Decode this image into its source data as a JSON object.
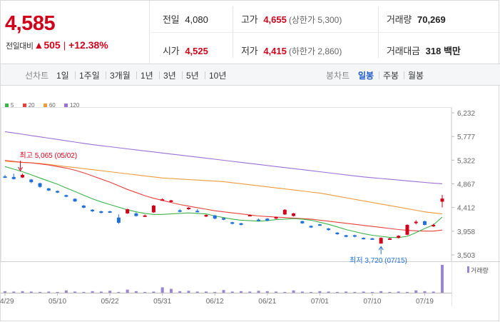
{
  "header": {
    "current_price": "4,585",
    "change_label": "전일대비",
    "change_value": "▲505",
    "change_rate": "+12.38%"
  },
  "stats": {
    "prev_close": {
      "label": "전일",
      "value": "4,080"
    },
    "high": {
      "label": "고가",
      "value": "4,655",
      "sub": "(상한가 5,300)"
    },
    "volume": {
      "label": "거래량",
      "value": "70,269"
    },
    "open": {
      "label": "시가",
      "value": "4,525"
    },
    "low": {
      "label": "저가",
      "value": "4,415",
      "sub": "(하한가 2,860)"
    },
    "amount": {
      "label": "거래대금",
      "value": "318 백만"
    }
  },
  "period_bar": {
    "line_label": "선차트",
    "line_options": [
      "1일",
      "1주일",
      "3개월",
      "1년",
      "3년",
      "5년",
      "10년"
    ],
    "candle_label": "봉차트",
    "candle_options": [
      "일봉",
      "주봉",
      "월봉"
    ],
    "candle_active": "일봉"
  },
  "colors": {
    "up": "#d0021b",
    "down": "#1f6fd6",
    "ma5": "#3cb44b",
    "ma20": "#e8413c",
    "ma60": "#f09a3e",
    "ma120": "#9b6fd3",
    "volume": "#9b86d3"
  },
  "chart_data": {
    "type": "candlestick",
    "title": "",
    "legend": [
      "5",
      "20",
      "60",
      "120"
    ],
    "y_ticks": [
      "6,232",
      "5,777",
      "5,322",
      "4,867",
      "4,412",
      "3,958",
      "3,503"
    ],
    "ylim": [
      3503,
      6232
    ],
    "x_labels": [
      "04/29",
      "05/10",
      "05/22",
      "05/31",
      "06/12",
      "06/21",
      "07/01",
      "07/10",
      "07/19"
    ],
    "x_label_index": [
      0,
      6,
      12,
      18,
      24,
      30,
      36,
      42,
      48
    ],
    "volume_label": "거래량",
    "annotations": {
      "high": {
        "text": "최고 5,065 (05/02)",
        "index": 2,
        "value": 5065
      },
      "low": {
        "text": "최저 3,720 (07/15)",
        "index": 43,
        "value": 3720
      }
    },
    "ohlc": [
      [
        5010,
        5040,
        4990,
        5000
      ],
      [
        5000,
        5065,
        4950,
        4960
      ],
      [
        4990,
        5065,
        4980,
        5040
      ],
      [
        4950,
        4960,
        4880,
        4900
      ],
      [
        4880,
        4890,
        4790,
        4810
      ],
      [
        4780,
        4790,
        4730,
        4740
      ],
      [
        4730,
        4740,
        4690,
        4700
      ],
      [
        4650,
        4660,
        4610,
        4620
      ],
      [
        4580,
        4590,
        4520,
        4530
      ],
      [
        4450,
        4460,
        4400,
        4410
      ],
      [
        4370,
        4380,
        4330,
        4340
      ],
      [
        4340,
        4350,
        4300,
        4310
      ],
      [
        4340,
        4350,
        4310,
        4320
      ],
      [
        4220,
        4280,
        4100,
        4120
      ],
      [
        4300,
        4390,
        4290,
        4380
      ],
      [
        4300,
        4320,
        4240,
        4250
      ],
      [
        4250,
        4280,
        4240,
        4260
      ],
      [
        4320,
        4460,
        4310,
        4450
      ],
      [
        4560,
        4590,
        4540,
        4570
      ],
      [
        4520,
        4560,
        4510,
        4550
      ],
      [
        4360,
        4380,
        4320,
        4330
      ],
      [
        4380,
        4420,
        4370,
        4410
      ],
      [
        4350,
        4380,
        4320,
        4340
      ],
      [
        4240,
        4280,
        4230,
        4270
      ],
      [
        4260,
        4270,
        4190,
        4200
      ],
      [
        4210,
        4220,
        4170,
        4180
      ],
      [
        4130,
        4140,
        4090,
        4100
      ],
      [
        4110,
        4120,
        4070,
        4080
      ],
      [
        4260,
        4280,
        4250,
        4270
      ],
      [
        4180,
        4200,
        4160,
        4170
      ],
      [
        4200,
        4210,
        4150,
        4160
      ],
      [
        4200,
        4240,
        4190,
        4230
      ],
      [
        4280,
        4380,
        4270,
        4370
      ],
      [
        4250,
        4310,
        4240,
        4300
      ],
      [
        4150,
        4160,
        4100,
        4110
      ],
      [
        4060,
        4070,
        4020,
        4030
      ],
      [
        4090,
        4100,
        4060,
        4070
      ],
      [
        4010,
        4020,
        3970,
        3980
      ],
      [
        3930,
        3940,
        3890,
        3900
      ],
      [
        3880,
        3890,
        3840,
        3850
      ],
      [
        3880,
        3890,
        3840,
        3860
      ],
      [
        3830,
        3840,
        3800,
        3810
      ],
      [
        3820,
        3830,
        3800,
        3815
      ],
      [
        3720,
        3840,
        3720,
        3830
      ],
      [
        3810,
        3830,
        3800,
        3820
      ],
      [
        3830,
        3880,
        3820,
        3870
      ],
      [
        3890,
        4090,
        3880,
        4080
      ],
      [
        4120,
        4170,
        4090,
        4140
      ],
      [
        4150,
        4160,
        4070,
        4080
      ],
      [
        4050,
        4100,
        4040,
        4080
      ],
      [
        4525,
        4655,
        4415,
        4585
      ]
    ],
    "volume": [
      4,
      3,
      4,
      3,
      2,
      3,
      2,
      6,
      3,
      2,
      4,
      3,
      5,
      2,
      8,
      4,
      2,
      3,
      14,
      10,
      4,
      5,
      3,
      3,
      2,
      7,
      3,
      4,
      3,
      5,
      4,
      3,
      2,
      6,
      3,
      2,
      4,
      3,
      2,
      3,
      2,
      3,
      2,
      4,
      2,
      3,
      2,
      6,
      4,
      3,
      72
    ],
    "ma5": [
      5200,
      5150,
      5100,
      5040,
      4980,
      4920,
      4860,
      4790,
      4720,
      4650,
      4580,
      4520,
      4470,
      4420,
      4370,
      4330,
      4300,
      4280,
      4280,
      4290,
      4300,
      4310,
      4300,
      4290,
      4250,
      4220,
      4190,
      4170,
      4160,
      4150,
      4160,
      4180,
      4190,
      4200,
      4190,
      4170,
      4130,
      4090,
      4040,
      3990,
      3950,
      3910,
      3880,
      3860,
      3840,
      3835,
      3860,
      3930,
      4010,
      4080,
      4230
    ],
    "ma20": [
      5320,
      5300,
      5280,
      5270,
      5250,
      5230,
      5200,
      5170,
      5130,
      5080,
      5020,
      4960,
      4900,
      4830,
      4760,
      4700,
      4640,
      4590,
      4550,
      4510,
      4470,
      4440,
      4410,
      4380,
      4350,
      4330,
      4310,
      4290,
      4270,
      4250,
      4240,
      4230,
      4220,
      4210,
      4200,
      4190,
      4170,
      4150,
      4130,
      4110,
      4090,
      4070,
      4050,
      4030,
      4010,
      3990,
      3975,
      3965,
      3960,
      3960,
      3980
    ],
    "ma60": [
      5300,
      5290,
      5280,
      5270,
      5260,
      5240,
      5220,
      5200,
      5180,
      5160,
      5140,
      5120,
      5100,
      5080,
      5060,
      5040,
      5020,
      5000,
      4980,
      4970,
      4960,
      4950,
      4940,
      4930,
      4920,
      4910,
      4890,
      4870,
      4850,
      4830,
      4810,
      4790,
      4770,
      4750,
      4730,
      4710,
      4690,
      4660,
      4630,
      4600,
      4570,
      4540,
      4510,
      4480,
      4450,
      4420,
      4390,
      4360,
      4330,
      4310,
      4290
    ],
    "ma120": [
      5870,
      5845,
      5820,
      5795,
      5770,
      5745,
      5720,
      5695,
      5670,
      5645,
      5620,
      5600,
      5580,
      5560,
      5540,
      5520,
      5500,
      5480,
      5460,
      5440,
      5420,
      5400,
      5380,
      5360,
      5340,
      5320,
      5300,
      5280,
      5260,
      5240,
      5220,
      5200,
      5180,
      5160,
      5140,
      5120,
      5100,
      5080,
      5060,
      5040,
      5020,
      5000,
      4985,
      4970,
      4955,
      4940,
      4925,
      4910,
      4895,
      4880,
      4870
    ]
  }
}
